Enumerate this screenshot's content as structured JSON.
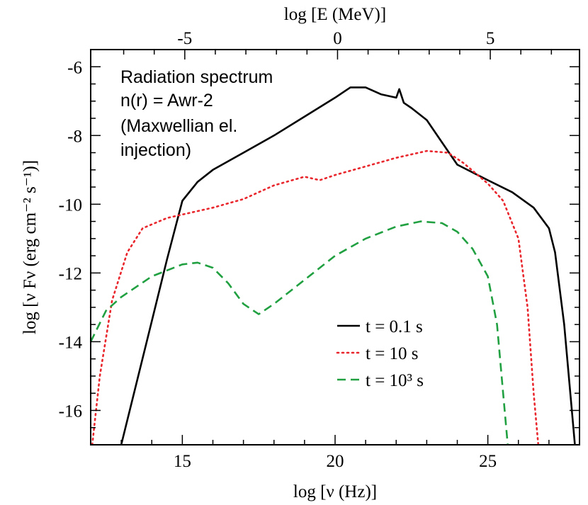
{
  "chart_data": {
    "type": "line",
    "xlabel": "log [ν (Hz)]",
    "ylabel": "log [ν Fν (erg cm⁻² s⁻¹)]",
    "top_xlabel": "log [E (MeV)]",
    "xlim": [
      12,
      28
    ],
    "ylim": [
      -17,
      -5.5
    ],
    "x_ticks": [
      "15",
      "20",
      "25"
    ],
    "x_tick_values": [
      15,
      20,
      25
    ],
    "y_ticks": [
      "-6",
      "-8",
      "-10",
      "-12",
      "-14",
      "-16"
    ],
    "y_tick_values": [
      -6,
      -8,
      -10,
      -12,
      -14,
      -16
    ],
    "top_x_ticks": [
      "-5",
      "0",
      "5"
    ],
    "top_x_tick_values": [
      -5,
      0,
      5
    ],
    "annotation_lines": [
      "Radiation spectrum",
      "n(r) = Awr-2",
      "(Maxwellian el.",
      "injection)"
    ],
    "legend_position": "bottom-right",
    "series": [
      {
        "name": "t = 0.1 s",
        "color": "#000000",
        "dash": "solid",
        "points": [
          [
            13.0,
            -17.0
          ],
          [
            13.5,
            -15.2
          ],
          [
            14.0,
            -13.4
          ],
          [
            14.5,
            -11.6
          ],
          [
            15.0,
            -9.9
          ],
          [
            15.5,
            -9.35
          ],
          [
            16.0,
            -9.0
          ],
          [
            17.0,
            -8.5
          ],
          [
            18.0,
            -8.0
          ],
          [
            19.0,
            -7.45
          ],
          [
            20.0,
            -6.9
          ],
          [
            20.5,
            -6.6
          ],
          [
            21.0,
            -6.6
          ],
          [
            21.5,
            -6.8
          ],
          [
            22.0,
            -6.9
          ],
          [
            22.1,
            -6.65
          ],
          [
            22.25,
            -7.05
          ],
          [
            22.5,
            -7.2
          ],
          [
            23.0,
            -7.55
          ],
          [
            23.5,
            -8.2
          ],
          [
            24.0,
            -8.85
          ],
          [
            25.0,
            -9.3
          ],
          [
            25.8,
            -9.65
          ],
          [
            26.5,
            -10.1
          ],
          [
            27.0,
            -10.7
          ],
          [
            27.2,
            -11.4
          ],
          [
            27.5,
            -13.5
          ],
          [
            27.75,
            -16.0
          ],
          [
            27.85,
            -17.0
          ]
        ]
      },
      {
        "name": "t = 10 s",
        "color": "#e8262c",
        "dash": "dotted",
        "points": [
          [
            12.05,
            -17.0
          ],
          [
            12.3,
            -15.0
          ],
          [
            12.7,
            -12.8
          ],
          [
            13.2,
            -11.4
          ],
          [
            13.7,
            -10.7
          ],
          [
            14.5,
            -10.4
          ],
          [
            15.0,
            -10.3
          ],
          [
            16.0,
            -10.1
          ],
          [
            17.0,
            -9.85
          ],
          [
            18.0,
            -9.45
          ],
          [
            19.0,
            -9.2
          ],
          [
            19.5,
            -9.3
          ],
          [
            20.0,
            -9.15
          ],
          [
            21.0,
            -8.9
          ],
          [
            22.0,
            -8.65
          ],
          [
            23.0,
            -8.45
          ],
          [
            23.7,
            -8.5
          ],
          [
            24.2,
            -8.8
          ],
          [
            25.0,
            -9.4
          ],
          [
            25.5,
            -9.9
          ],
          [
            26.0,
            -11.0
          ],
          [
            26.3,
            -13.0
          ],
          [
            26.5,
            -15.5
          ],
          [
            26.65,
            -17.0
          ]
        ]
      },
      {
        "name": "t = 10³ s",
        "color": "#21a041",
        "dash": "dashed",
        "points": [
          [
            12.0,
            -14.0
          ],
          [
            12.5,
            -13.1
          ],
          [
            13.0,
            -12.7
          ],
          [
            14.0,
            -12.1
          ],
          [
            15.0,
            -11.75
          ],
          [
            15.5,
            -11.7
          ],
          [
            16.0,
            -11.85
          ],
          [
            16.5,
            -12.3
          ],
          [
            17.0,
            -12.9
          ],
          [
            17.5,
            -13.2
          ],
          [
            18.0,
            -12.9
          ],
          [
            19.0,
            -12.2
          ],
          [
            20.0,
            -11.5
          ],
          [
            21.0,
            -11.0
          ],
          [
            22.0,
            -10.65
          ],
          [
            22.8,
            -10.5
          ],
          [
            23.5,
            -10.55
          ],
          [
            24.0,
            -10.8
          ],
          [
            24.5,
            -11.3
          ],
          [
            25.0,
            -12.1
          ],
          [
            25.3,
            -13.5
          ],
          [
            25.5,
            -15.5
          ],
          [
            25.65,
            -17.0
          ]
        ]
      }
    ]
  }
}
